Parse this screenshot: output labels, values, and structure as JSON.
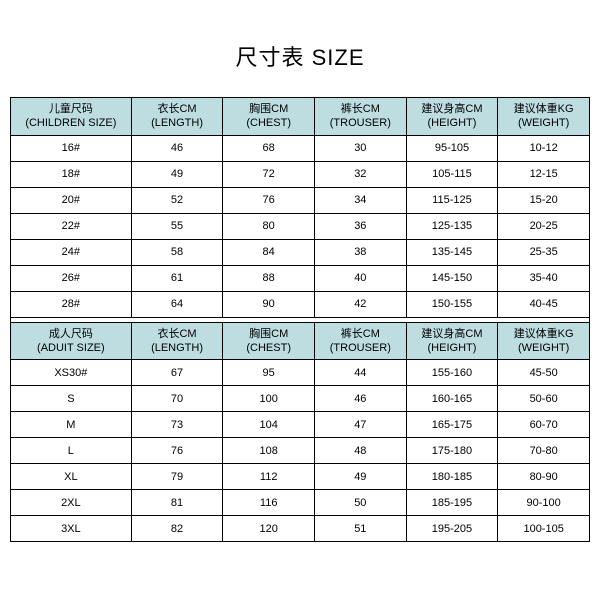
{
  "title": "尺寸表 SIZE",
  "header_bg": "#bedde1",
  "border_color": "#000000",
  "children": {
    "columns": [
      {
        "cn": "儿童尺码",
        "en": "(CHILDREN SIZE)"
      },
      {
        "cn": "衣长CM",
        "en": "(LENGTH)"
      },
      {
        "cn": "胸围CM",
        "en": "(CHEST)"
      },
      {
        "cn": "裤长CM",
        "en": "(TROUSER)"
      },
      {
        "cn": "建议身高CM",
        "en": "(HEIGHT)"
      },
      {
        "cn": "建议体重KG",
        "en": "(WEIGHT)"
      }
    ],
    "rows": [
      [
        "16#",
        "46",
        "68",
        "30",
        "95-105",
        "10-12"
      ],
      [
        "18#",
        "49",
        "72",
        "32",
        "105-115",
        "12-15"
      ],
      [
        "20#",
        "52",
        "76",
        "34",
        "115-125",
        "15-20"
      ],
      [
        "22#",
        "55",
        "80",
        "36",
        "125-135",
        "20-25"
      ],
      [
        "24#",
        "58",
        "84",
        "38",
        "135-145",
        "25-35"
      ],
      [
        "26#",
        "61",
        "88",
        "40",
        "145-150",
        "35-40"
      ],
      [
        "28#",
        "64",
        "90",
        "42",
        "150-155",
        "40-45"
      ]
    ]
  },
  "adult": {
    "columns": [
      {
        "cn": "成人尺码",
        "en": "(ADUIT SIZE)"
      },
      {
        "cn": "衣长CM",
        "en": "(LENGTH)"
      },
      {
        "cn": "胸围CM",
        "en": "(CHEST)"
      },
      {
        "cn": "裤长CM",
        "en": "(TROUSER)"
      },
      {
        "cn": "建议身高CM",
        "en": "(HEIGHT)"
      },
      {
        "cn": "建议体重KG",
        "en": "(WEIGHT)"
      }
    ],
    "rows": [
      [
        "XS30#",
        "67",
        "95",
        "44",
        "155-160",
        "45-50"
      ],
      [
        "S",
        "70",
        "100",
        "46",
        "160-165",
        "50-60"
      ],
      [
        "M",
        "73",
        "104",
        "47",
        "165-175",
        "60-70"
      ],
      [
        "L",
        "76",
        "108",
        "48",
        "175-180",
        "70-80"
      ],
      [
        "XL",
        "79",
        "112",
        "49",
        "180-185",
        "80-90"
      ],
      [
        "2XL",
        "81",
        "116",
        "50",
        "185-195",
        "90-100"
      ],
      [
        "3XL",
        "82",
        "120",
        "51",
        "195-205",
        "100-105"
      ]
    ]
  }
}
